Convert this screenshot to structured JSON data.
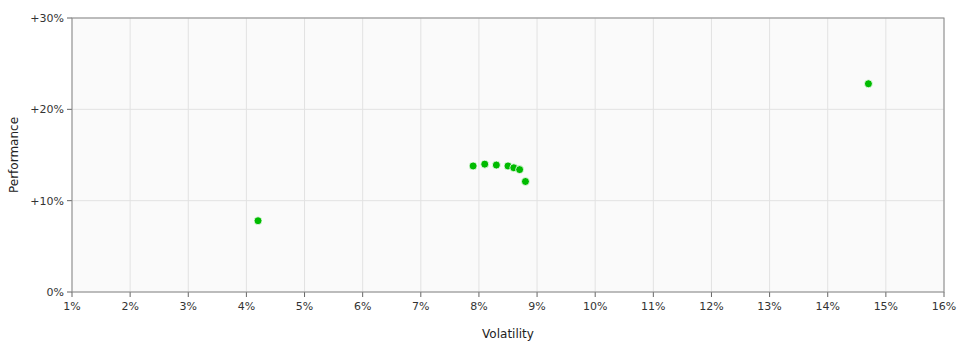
{
  "chart_data": {
    "type": "scatter",
    "xlabel": "Volatility",
    "ylabel": "Performance",
    "color": "#00bb00",
    "x": [
      0.042,
      0.079,
      0.081,
      0.083,
      0.085,
      0.086,
      0.087,
      0.088,
      0.147
    ],
    "values": [
      0.078,
      0.138,
      0.14,
      0.139,
      0.138,
      0.136,
      0.134,
      0.121,
      0.228
    ],
    "xlim": [
      0.01,
      0.16
    ],
    "ylim": [
      0.0,
      0.3
    ],
    "xticks": [
      {
        "value": 0.01,
        "label": "1%"
      },
      {
        "value": 0.02,
        "label": "2%"
      },
      {
        "value": 0.03,
        "label": "3%"
      },
      {
        "value": 0.04,
        "label": "4%"
      },
      {
        "value": 0.05,
        "label": "5%"
      },
      {
        "value": 0.06,
        "label": "6%"
      },
      {
        "value": 0.07,
        "label": "7%"
      },
      {
        "value": 0.08,
        "label": "8%"
      },
      {
        "value": 0.09,
        "label": "9%"
      },
      {
        "value": 0.1,
        "label": "10%"
      },
      {
        "value": 0.11,
        "label": "11%"
      },
      {
        "value": 0.12,
        "label": "12%"
      },
      {
        "value": 0.13,
        "label": "13%"
      },
      {
        "value": 0.14,
        "label": "14%"
      },
      {
        "value": 0.15,
        "label": "15%"
      },
      {
        "value": 0.16,
        "label": "16%"
      }
    ],
    "yticks": [
      {
        "value": 0.0,
        "label": "0%"
      },
      {
        "value": 0.1,
        "label": "+10%"
      },
      {
        "value": 0.2,
        "label": "+20%"
      },
      {
        "value": 0.3,
        "label": "+30%"
      }
    ],
    "grid": true
  }
}
